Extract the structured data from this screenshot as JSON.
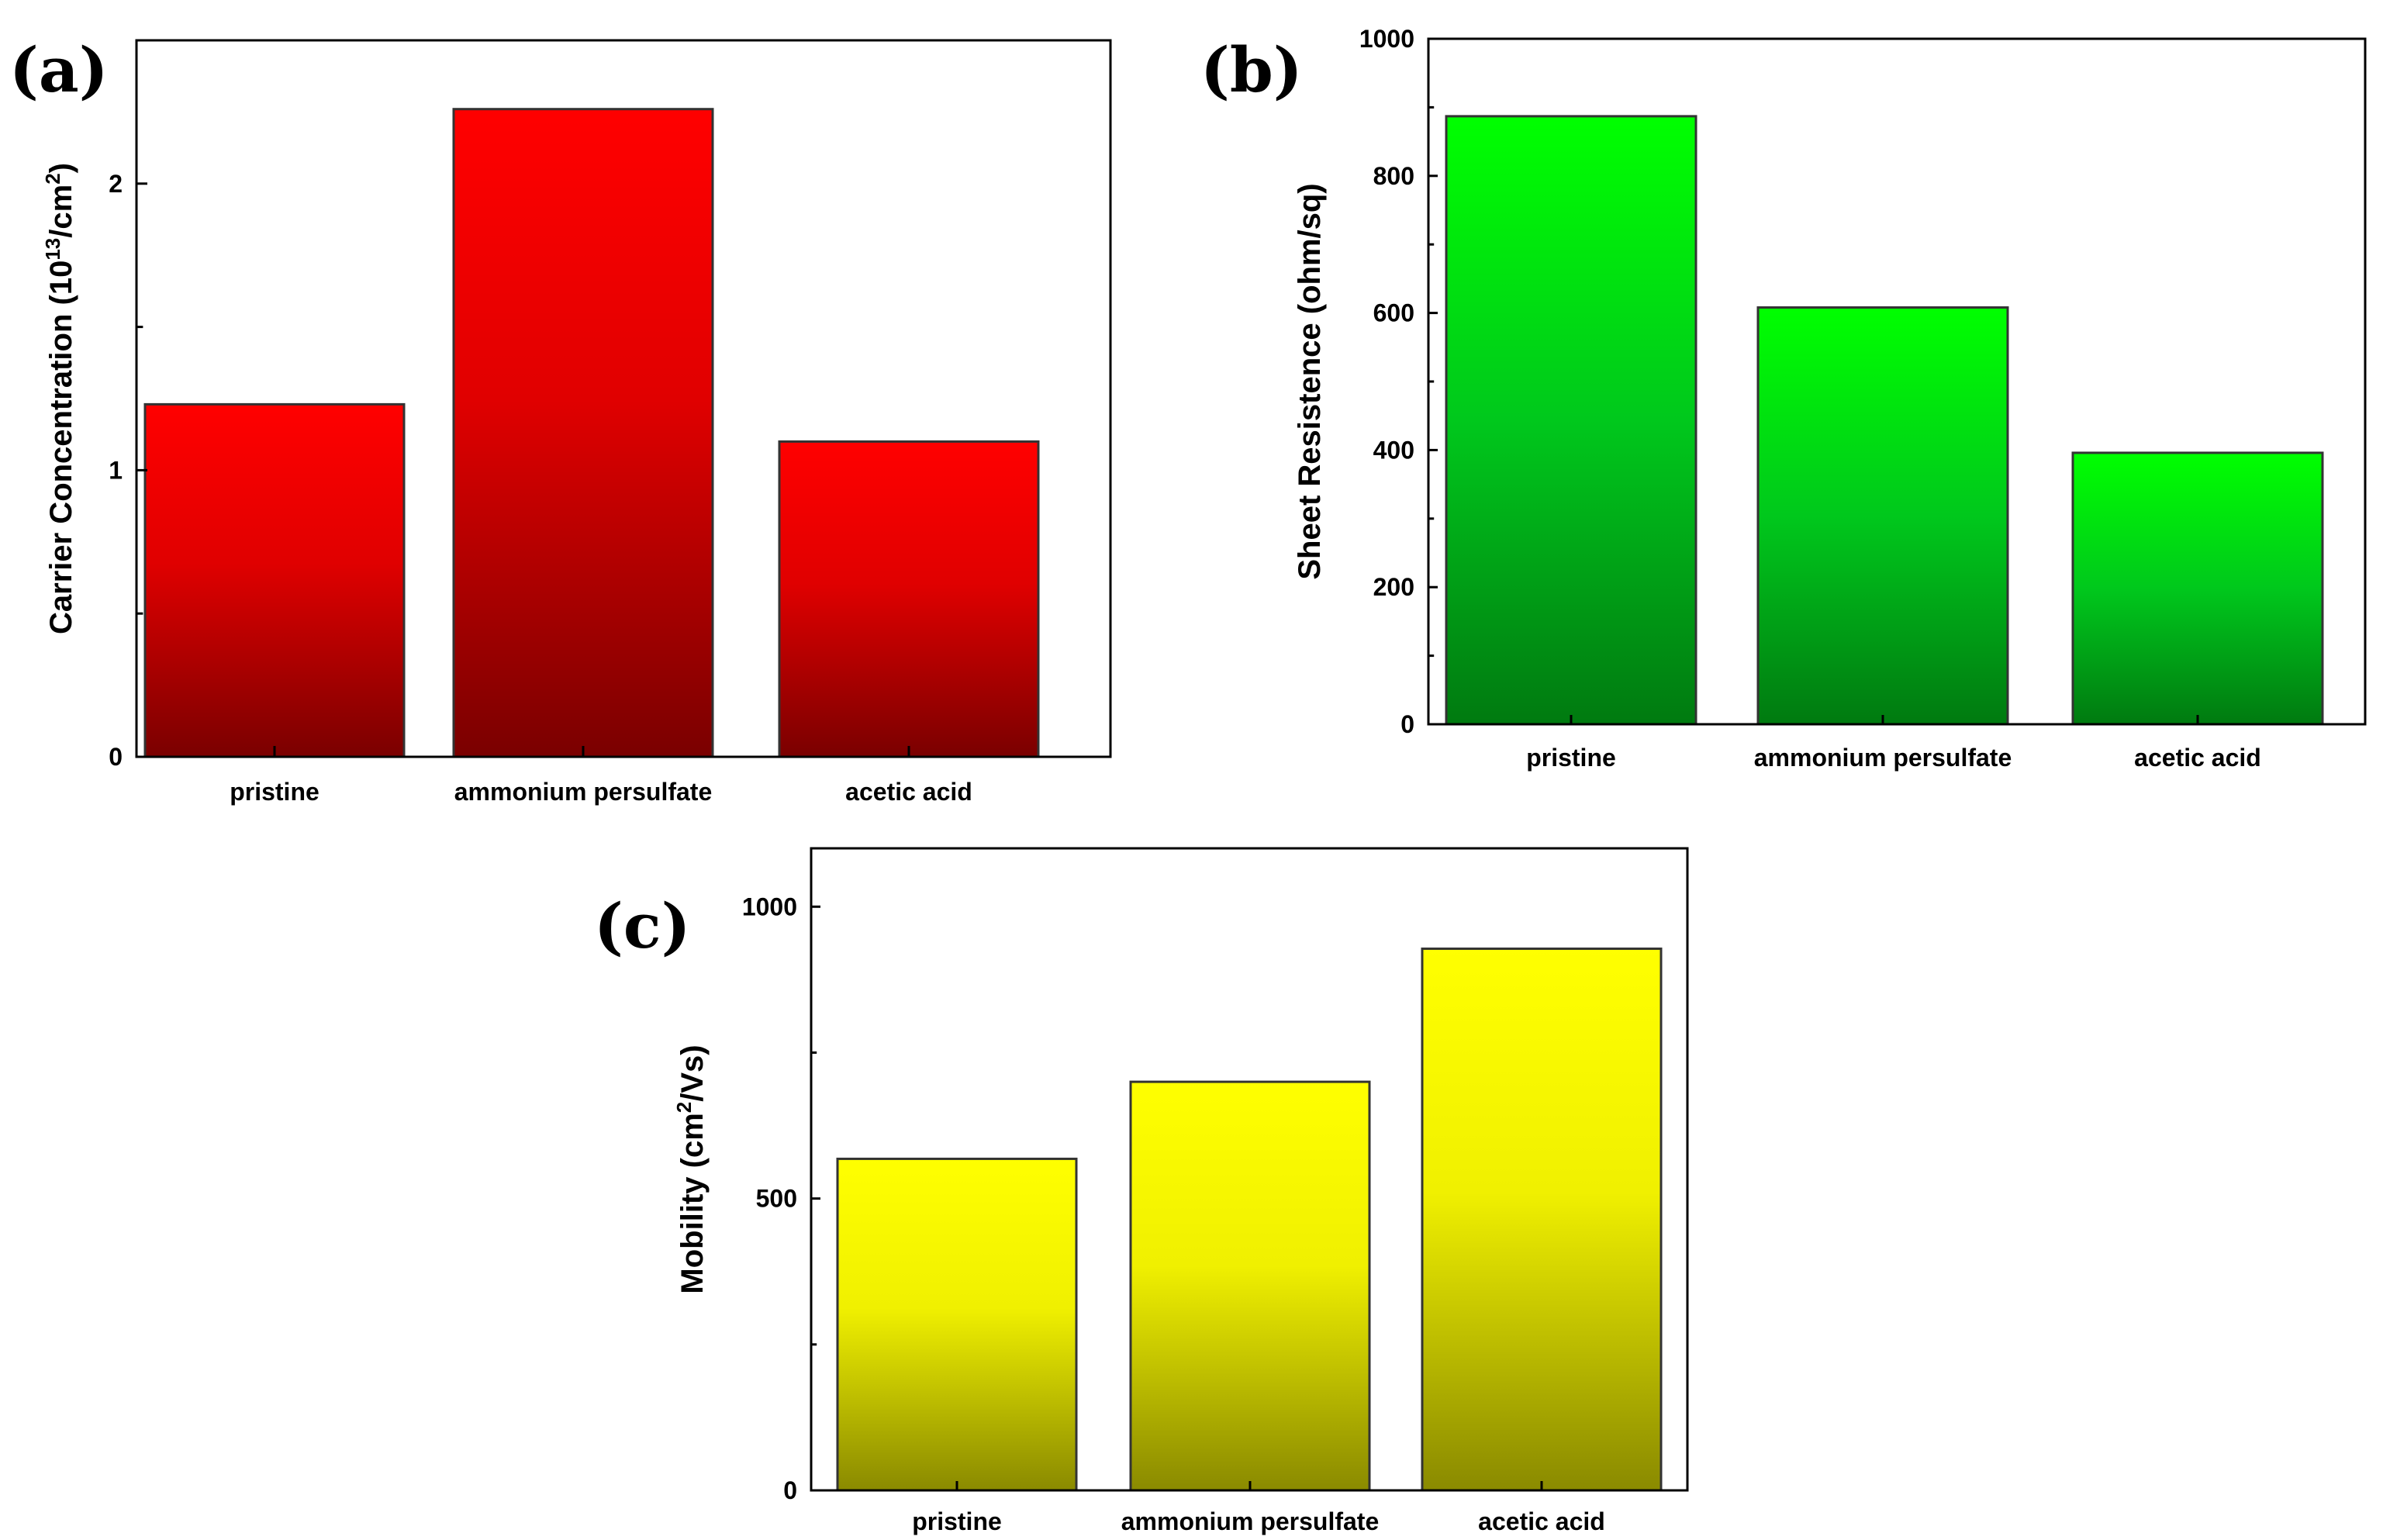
{
  "figure": {
    "panels": [
      "(a)",
      "(b)",
      "(c)"
    ]
  },
  "colors": {
    "a_top": "#ff0000",
    "a_bottom": "#7a0000",
    "b_top": "#00ff00",
    "b_bottom": "#007a10",
    "c_top": "#ffff00",
    "c_bottom": "#8a8a00"
  },
  "chart_data": [
    {
      "panel": "(a)",
      "type": "bar",
      "categories": [
        "pristine",
        "ammonium persulfate",
        "acetic acid"
      ],
      "values": [
        1.23,
        2.26,
        1.1
      ],
      "ylabel_main": "Carrier Concentration (10",
      "ylabel_sup1": "13",
      "ylabel_mid": "/cm",
      "ylabel_sup2": "2",
      "ylabel_end": ")",
      "ylim": [
        0,
        2.5
      ],
      "yticks": [
        0,
        0.5,
        1,
        1.5,
        2
      ],
      "ytick_labels": [
        "0",
        "1",
        "2"
      ],
      "ytick_label_values": [
        0,
        1,
        2
      ]
    },
    {
      "panel": "(b)",
      "type": "bar",
      "categories": [
        "pristine",
        "ammonium persulfate",
        "acetic acid"
      ],
      "values": [
        887,
        608,
        396
      ],
      "ylabel": "Sheet Resistence (ohm/sq)",
      "ylim": [
        0,
        1000
      ],
      "yticks": [
        0,
        100,
        200,
        300,
        400,
        500,
        600,
        700,
        800,
        900,
        1000
      ],
      "ytick_labels": [
        "0",
        "200",
        "400",
        "600",
        "800",
        "1000"
      ],
      "ytick_label_values": [
        0,
        200,
        400,
        600,
        800,
        1000
      ]
    },
    {
      "panel": "(c)",
      "type": "bar",
      "categories": [
        "pristine",
        "ammonium persulfate",
        "acetic acid"
      ],
      "values": [
        568,
        700,
        928
      ],
      "ylabel_main": "Mobility (cm",
      "ylabel_sup1": "2",
      "ylabel_end": "/Vs)",
      "ylim": [
        0,
        1100
      ],
      "yticks": [
        0,
        250,
        500,
        750,
        1000
      ],
      "ytick_labels": [
        "0",
        "500",
        "1000"
      ],
      "ytick_label_values": [
        0,
        500,
        1000
      ]
    }
  ]
}
